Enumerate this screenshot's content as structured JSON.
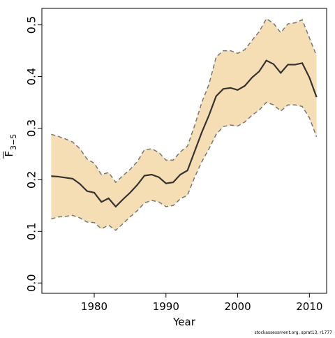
{
  "chart_data": {
    "type": "line_band",
    "ylabel": {
      "symbol": "F",
      "subscript": "3−5"
    },
    "xlabel": "Year",
    "footnote": "stockassessment.org, sprat13, r1777",
    "x": [
      1974,
      1975,
      1976,
      1977,
      1978,
      1979,
      1980,
      1981,
      1982,
      1983,
      1984,
      1985,
      1986,
      1987,
      1988,
      1989,
      1990,
      1991,
      1992,
      1993,
      1994,
      1995,
      1996,
      1997,
      1998,
      1999,
      2000,
      2001,
      2002,
      2003,
      2004,
      2005,
      2006,
      2007,
      2008,
      2009,
      2010,
      2011
    ],
    "values": [
      0.207,
      0.206,
      0.204,
      0.202,
      0.192,
      0.178,
      0.175,
      0.157,
      0.164,
      0.148,
      0.162,
      0.175,
      0.19,
      0.208,
      0.21,
      0.205,
      0.193,
      0.195,
      0.21,
      0.218,
      0.255,
      0.292,
      0.325,
      0.362,
      0.376,
      0.378,
      0.374,
      0.382,
      0.398,
      0.41,
      0.431,
      0.424,
      0.407,
      0.423,
      0.423,
      0.426,
      0.398,
      0.36
    ],
    "upper": [
      0.288,
      0.284,
      0.279,
      0.273,
      0.26,
      0.24,
      0.232,
      0.21,
      0.214,
      0.195,
      0.208,
      0.22,
      0.235,
      0.258,
      0.26,
      0.253,
      0.238,
      0.238,
      0.254,
      0.265,
      0.305,
      0.35,
      0.385,
      0.438,
      0.45,
      0.45,
      0.445,
      0.452,
      0.47,
      0.487,
      0.512,
      0.503,
      0.485,
      0.502,
      0.504,
      0.51,
      0.475,
      0.44
    ],
    "lower": [
      0.124,
      0.128,
      0.129,
      0.131,
      0.126,
      0.118,
      0.117,
      0.105,
      0.112,
      0.102,
      0.115,
      0.128,
      0.14,
      0.155,
      0.16,
      0.157,
      0.148,
      0.15,
      0.163,
      0.17,
      0.205,
      0.235,
      0.26,
      0.288,
      0.303,
      0.306,
      0.304,
      0.312,
      0.325,
      0.335,
      0.35,
      0.345,
      0.333,
      0.345,
      0.345,
      0.342,
      0.32,
      0.283
    ],
    "color": "#333333",
    "band_color": "#f5deb3",
    "bound_color": "#777777",
    "xlim": [
      1972.7,
      2012.4
    ],
    "ylim": [
      -0.02,
      0.532
    ],
    "xticks": [
      1980,
      1990,
      2000,
      2010
    ],
    "yticks": [
      {
        "value": 0,
        "label": "0.0"
      },
      0.1,
      0.2,
      0.3,
      0.4,
      0.5
    ]
  }
}
